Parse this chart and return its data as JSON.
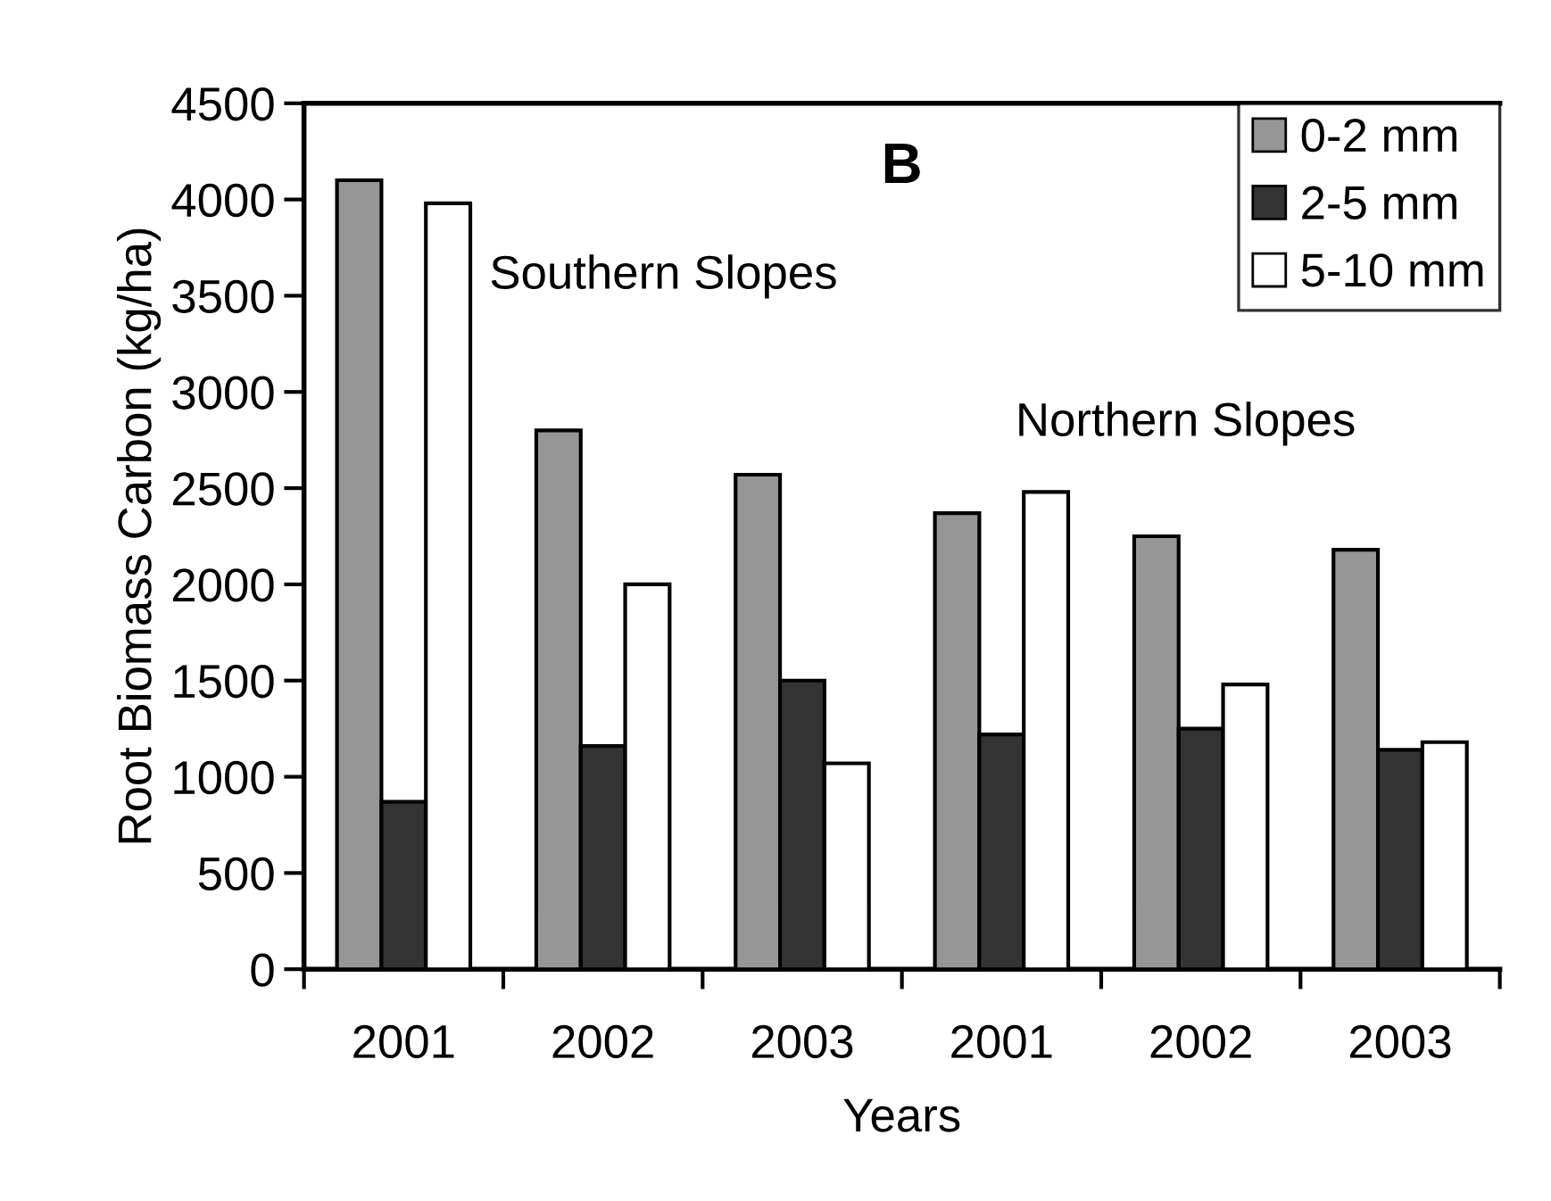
{
  "chart_data": {
    "type": "bar",
    "xlabel": "Years",
    "ylabel": "Root Biomass Carbon (kg/ha)",
    "categories": [
      "2001",
      "2002",
      "2003",
      "2001",
      "2002",
      "2003"
    ],
    "series": [
      {
        "name": "0-2 mm",
        "color": "#969696",
        "values": [
          4100,
          2800,
          2570,
          2370,
          2250,
          2180
        ]
      },
      {
        "name": "2-5 mm",
        "color": "#333333",
        "values": [
          870,
          1160,
          1500,
          1220,
          1250,
          1140
        ]
      },
      {
        "name": "5-10 mm",
        "color": "#ffffff",
        "values": [
          3980,
          2000,
          1070,
          2480,
          1480,
          1180
        ]
      }
    ],
    "ylim": [
      0,
      4500
    ],
    "yticks": [
      0,
      500,
      1000,
      1500,
      2000,
      2500,
      3000,
      3500,
      4000,
      4500
    ],
    "annotations": [
      "B",
      "Southern Slopes",
      "Northern Slopes"
    ],
    "legend": "top right",
    "grid": false
  }
}
